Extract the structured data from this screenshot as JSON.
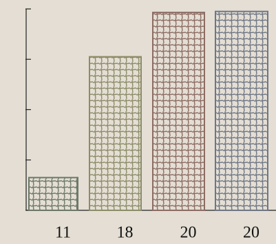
{
  "chart_data": {
    "type": "bar",
    "categories": [
      "11",
      "18",
      "20",
      "20"
    ],
    "values": [
      0.65,
      3.05,
      3.93,
      3.95
    ],
    "colors": [
      "#6b7868",
      "#8b8c68",
      "#8c6c62",
      "#6e7684"
    ],
    "ylim": [
      0,
      4
    ],
    "yticks": [
      0,
      1,
      2,
      3,
      4
    ]
  }
}
